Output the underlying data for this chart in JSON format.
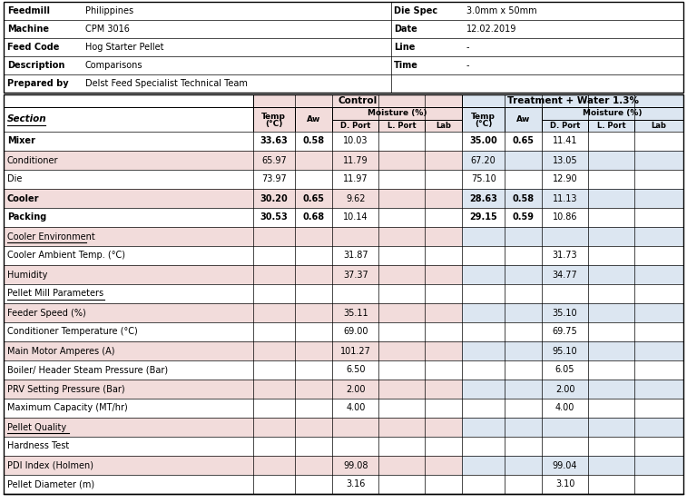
{
  "meta": {
    "feedmill": "Philippines",
    "machine": "CPM 3016",
    "feed_code": "Hog Starter Pellet",
    "description": "Comparisons",
    "prepared_by": "Delst Feed Specialist Technical Team",
    "die_spec": "3.0mm x 50mm",
    "date": "12.02.2019",
    "line": "-",
    "time": "-"
  },
  "bg_pink": "#F2DCDB",
  "bg_blue": "#DCE6F1",
  "bg_white": "#FFFFFF",
  "data_rows": [
    {
      "label": "Mixer",
      "bold": true,
      "underline": false,
      "section": false,
      "ctrl_temp": "33.63",
      "ctrl_aw": "0.58",
      "ctrl_dport": "10.03",
      "ctrl_lport": "",
      "ctrl_lab": "",
      "trt_temp": "35.00",
      "trt_aw": "0.65",
      "trt_dport": "11.41",
      "trt_lport": "",
      "trt_lab": "",
      "bg": "white"
    },
    {
      "label": "Conditioner",
      "bold": false,
      "underline": false,
      "section": false,
      "ctrl_temp": "65.97",
      "ctrl_aw": "",
      "ctrl_dport": "11.79",
      "ctrl_lport": "",
      "ctrl_lab": "",
      "trt_temp": "67.20",
      "trt_aw": "",
      "trt_dport": "13.05",
      "trt_lport": "",
      "trt_lab": "",
      "bg": "pink"
    },
    {
      "label": "Die",
      "bold": false,
      "underline": false,
      "section": false,
      "ctrl_temp": "73.97",
      "ctrl_aw": "",
      "ctrl_dport": "11.97",
      "ctrl_lport": "",
      "ctrl_lab": "",
      "trt_temp": "75.10",
      "trt_aw": "",
      "trt_dport": "12.90",
      "trt_lport": "",
      "trt_lab": "",
      "bg": "white"
    },
    {
      "label": "Cooler",
      "bold": true,
      "underline": false,
      "section": false,
      "ctrl_temp": "30.20",
      "ctrl_aw": "0.65",
      "ctrl_dport": "9.62",
      "ctrl_lport": "",
      "ctrl_lab": "",
      "trt_temp": "28.63",
      "trt_aw": "0.58",
      "trt_dport": "11.13",
      "trt_lport": "",
      "trt_lab": "",
      "bg": "pink"
    },
    {
      "label": "Packing",
      "bold": true,
      "underline": false,
      "section": false,
      "ctrl_temp": "30.53",
      "ctrl_aw": "0.68",
      "ctrl_dport": "10.14",
      "ctrl_lport": "",
      "ctrl_lab": "",
      "trt_temp": "29.15",
      "trt_aw": "0.59",
      "trt_dport": "10.86",
      "trt_lport": "",
      "trt_lab": "",
      "bg": "white"
    },
    {
      "label": "Cooler Environment",
      "bold": false,
      "underline": true,
      "section": true,
      "ctrl_temp": "",
      "ctrl_aw": "",
      "ctrl_dport": "",
      "ctrl_lport": "",
      "ctrl_lab": "",
      "trt_temp": "",
      "trt_aw": "",
      "trt_dport": "",
      "trt_lport": "",
      "trt_lab": "",
      "bg": "pink"
    },
    {
      "label": "Cooler Ambient Temp. (°C)",
      "bold": false,
      "underline": false,
      "section": false,
      "ctrl_temp": "",
      "ctrl_aw": "",
      "ctrl_dport": "31.87",
      "ctrl_lport": "",
      "ctrl_lab": "",
      "trt_temp": "",
      "trt_aw": "",
      "trt_dport": "31.73",
      "trt_lport": "",
      "trt_lab": "",
      "bg": "white"
    },
    {
      "label": "Humidity",
      "bold": false,
      "underline": false,
      "section": false,
      "ctrl_temp": "",
      "ctrl_aw": "",
      "ctrl_dport": "37.37",
      "ctrl_lport": "",
      "ctrl_lab": "",
      "trt_temp": "",
      "trt_aw": "",
      "trt_dport": "34.77",
      "trt_lport": "",
      "trt_lab": "",
      "bg": "pink"
    },
    {
      "label": "Pellet Mill Parameters",
      "bold": false,
      "underline": true,
      "section": true,
      "ctrl_temp": "",
      "ctrl_aw": "",
      "ctrl_dport": "",
      "ctrl_lport": "",
      "ctrl_lab": "",
      "trt_temp": "",
      "trt_aw": "",
      "trt_dport": "",
      "trt_lport": "",
      "trt_lab": "",
      "bg": "white"
    },
    {
      "label": "Feeder Speed (%)",
      "bold": false,
      "underline": false,
      "section": false,
      "ctrl_temp": "",
      "ctrl_aw": "",
      "ctrl_dport": "35.11",
      "ctrl_lport": "",
      "ctrl_lab": "",
      "trt_temp": "",
      "trt_aw": "",
      "trt_dport": "35.10",
      "trt_lport": "",
      "trt_lab": "",
      "bg": "pink"
    },
    {
      "label": "Conditioner Temperature (°C)",
      "bold": false,
      "underline": false,
      "section": false,
      "ctrl_temp": "",
      "ctrl_aw": "",
      "ctrl_dport": "69.00",
      "ctrl_lport": "",
      "ctrl_lab": "",
      "trt_temp": "",
      "trt_aw": "",
      "trt_dport": "69.75",
      "trt_lport": "",
      "trt_lab": "",
      "bg": "white"
    },
    {
      "label": "Main Motor Amperes (A)",
      "bold": false,
      "underline": false,
      "section": false,
      "ctrl_temp": "",
      "ctrl_aw": "",
      "ctrl_dport": "101.27",
      "ctrl_lport": "",
      "ctrl_lab": "",
      "trt_temp": "",
      "trt_aw": "",
      "trt_dport": "95.10",
      "trt_lport": "",
      "trt_lab": "",
      "bg": "pink"
    },
    {
      "label": "Boiler/ Header Steam Pressure (Bar)",
      "bold": false,
      "underline": false,
      "section": false,
      "ctrl_temp": "",
      "ctrl_aw": "",
      "ctrl_dport": "6.50",
      "ctrl_lport": "",
      "ctrl_lab": "",
      "trt_temp": "",
      "trt_aw": "",
      "trt_dport": "6.05",
      "trt_lport": "",
      "trt_lab": "",
      "bg": "white"
    },
    {
      "label": "PRV Setting Pressure (Bar)",
      "bold": false,
      "underline": false,
      "section": false,
      "ctrl_temp": "",
      "ctrl_aw": "",
      "ctrl_dport": "2.00",
      "ctrl_lport": "",
      "ctrl_lab": "",
      "trt_temp": "",
      "trt_aw": "",
      "trt_dport": "2.00",
      "trt_lport": "",
      "trt_lab": "",
      "bg": "pink"
    },
    {
      "label": "Maximum Capacity (MT/hr)",
      "bold": false,
      "underline": false,
      "section": false,
      "ctrl_temp": "",
      "ctrl_aw": "",
      "ctrl_dport": "4.00",
      "ctrl_lport": "",
      "ctrl_lab": "",
      "trt_temp": "",
      "trt_aw": "",
      "trt_dport": "4.00",
      "trt_lport": "",
      "trt_lab": "",
      "bg": "white"
    },
    {
      "label": "Pellet Quality",
      "bold": false,
      "underline": true,
      "section": true,
      "ctrl_temp": "",
      "ctrl_aw": "",
      "ctrl_dport": "",
      "ctrl_lport": "",
      "ctrl_lab": "",
      "trt_temp": "",
      "trt_aw": "",
      "trt_dport": "",
      "trt_lport": "",
      "trt_lab": "",
      "bg": "pink"
    },
    {
      "label": "Hardness Test",
      "bold": false,
      "underline": false,
      "section": false,
      "ctrl_temp": "",
      "ctrl_aw": "",
      "ctrl_dport": "",
      "ctrl_lport": "",
      "ctrl_lab": "",
      "trt_temp": "",
      "trt_aw": "",
      "trt_dport": "",
      "trt_lport": "",
      "trt_lab": "",
      "bg": "white"
    },
    {
      "label": "PDI Index (Holmen)",
      "bold": false,
      "underline": false,
      "section": false,
      "ctrl_temp": "",
      "ctrl_aw": "",
      "ctrl_dport": "99.08",
      "ctrl_lport": "",
      "ctrl_lab": "",
      "trt_temp": "",
      "trt_aw": "",
      "trt_dport": "99.04",
      "trt_lport": "",
      "trt_lab": "",
      "bg": "pink"
    },
    {
      "label": "Pellet Diameter (m)",
      "bold": false,
      "underline": false,
      "section": false,
      "ctrl_temp": "",
      "ctrl_aw": "",
      "ctrl_dport": "3.16",
      "ctrl_lport": "",
      "ctrl_lab": "",
      "trt_temp": "",
      "trt_aw": "",
      "trt_dport": "3.10",
      "trt_lport": "",
      "trt_lab": "",
      "bg": "white"
    }
  ],
  "meta_labels": [
    "Feedmill",
    "Machine",
    "Feed Code",
    "Description",
    "Prepared by"
  ],
  "meta_vals": [
    "Philippines",
    "CPM 3016",
    "Hog Starter Pellet",
    "Comparisons",
    "Delst Feed Specialist Technical Team"
  ],
  "meta_right_labels": [
    "Die Spec",
    "Date",
    "Line",
    "Time",
    ""
  ],
  "meta_right_vals": [
    "3.0mm x 50mm",
    "12.02.2019",
    "-",
    "-",
    ""
  ]
}
